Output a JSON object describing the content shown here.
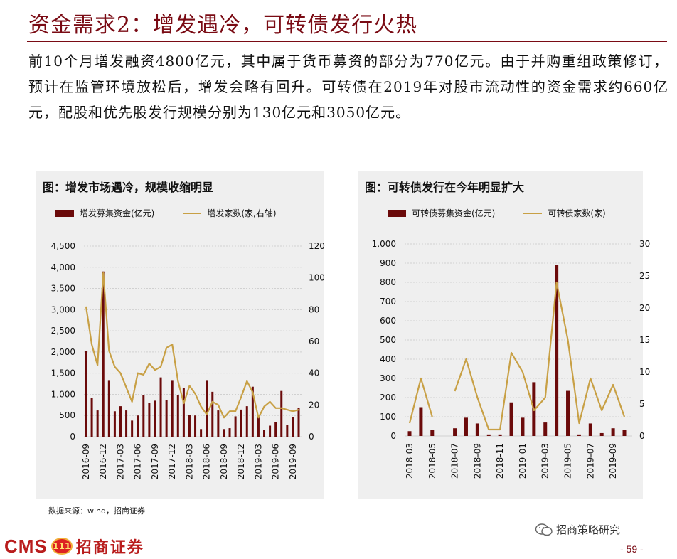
{
  "title": "资金需求2：增发遇冷，可转债发行火热",
  "lead": "前10个月增发融资4800亿元，其中属于货币募资的部分为770亿元。由于并购重组政策修订，预计在监管环境放松后，增发会略有回升。可转债在2019年对股市流动性的资金需求约660亿元，配股和优先股发行规模分别为130亿元和3050亿元。",
  "source": "数据来源：wind，招商证券",
  "footer": {
    "brand_en": "CMS",
    "brand_badge": "111",
    "brand_cn": "招商证券",
    "wechat": "招商策略研究",
    "page": "- 59 -"
  },
  "colors": {
    "bar": "#6b0a0a",
    "line": "#c8a045",
    "title": "#7a0b14"
  },
  "chart_data": [
    {
      "type": "bar+line",
      "title": "图：增发市场遇冷，规模收缩明显",
      "legend": {
        "bar": "增发募集资金(亿元)",
        "line": "增发家数(家,右轴)"
      },
      "y_left": {
        "min": 0,
        "max": 4500,
        "ticks": [
          "4,500",
          "4,000",
          "3,500",
          "3,000",
          "2,500",
          "2,000",
          "1,500",
          "1,000",
          "500",
          "0"
        ]
      },
      "y_right": {
        "min": 0,
        "max": 120,
        "ticks": [
          "120",
          "100",
          "80",
          "60",
          "40",
          "20",
          "0"
        ]
      },
      "tick_labels": [
        "2016-09",
        "2016-12",
        "2017-03",
        "2017-06",
        "2017-09",
        "2017-12",
        "2018-03",
        "2018-06",
        "2018-09",
        "2018-12",
        "2019-03",
        "2019-06",
        "2019-09"
      ],
      "series_bar": [
        2020,
        920,
        620,
        3900,
        1320,
        600,
        720,
        620,
        380,
        500,
        980,
        800,
        850,
        1400,
        860,
        1320,
        980,
        1150,
        520,
        500,
        180,
        1320,
        1060,
        620,
        180,
        200,
        480,
        640,
        720,
        1180,
        500,
        160,
        260,
        340,
        1080,
        280,
        460,
        680
      ],
      "series_line": [
        82,
        58,
        45,
        103,
        54,
        44,
        40,
        31,
        22,
        40,
        39,
        46,
        42,
        44,
        56,
        58,
        35,
        21,
        32,
        27,
        19,
        14,
        22,
        20,
        12,
        16,
        16,
        25,
        35,
        28,
        12,
        19,
        22,
        18,
        18,
        17,
        16,
        17
      ]
    },
    {
      "type": "bar+line",
      "title": "图：可转债发行在今年明显扩大",
      "legend": {
        "bar": "可转债募集资金(亿元)",
        "line": "可转债家数(家)"
      },
      "y_left": {
        "min": 0,
        "max": 1000,
        "ticks": [
          "1,000",
          "900",
          "800",
          "700",
          "600",
          "500",
          "400",
          "300",
          "200",
          "100",
          "0"
        ]
      },
      "y_right": {
        "min": 0,
        "max": 30,
        "ticks": [
          "30",
          "25",
          "20",
          "15",
          "10",
          "5",
          "0"
        ]
      },
      "tick_labels": [
        "2018-03",
        "2018-05",
        "2018-07",
        "2018-09",
        "2018-11",
        "2019-01",
        "2019-03",
        "2019-05",
        "2019-07",
        "2019-09"
      ],
      "series_bar": [
        25,
        150,
        30,
        0,
        40,
        95,
        65,
        8,
        8,
        175,
        95,
        280,
        70,
        890,
        235,
        8,
        65,
        15,
        40,
        30
      ],
      "series_line": [
        2,
        9,
        3,
        null,
        7,
        12,
        6,
        1,
        1,
        13,
        10,
        4,
        6,
        24,
        15,
        2,
        9,
        4,
        8,
        3
      ]
    }
  ]
}
